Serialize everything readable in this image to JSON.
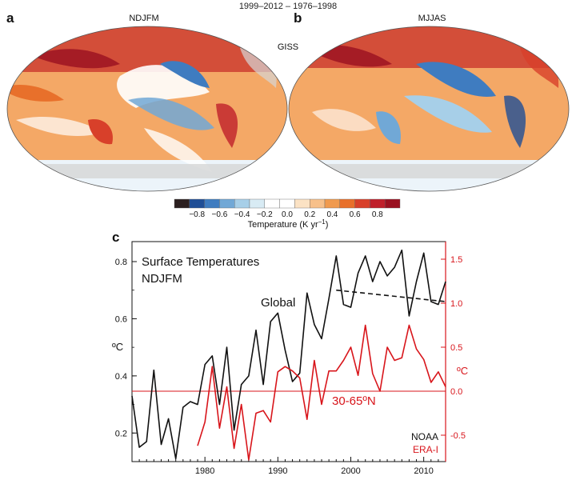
{
  "figure": {
    "header": "1999–2012 – 1976–1998",
    "panel_a": {
      "letter": "a",
      "season": "NDJFM"
    },
    "panel_b": {
      "letter": "b",
      "season": "MJJAS"
    },
    "panel_c": {
      "letter": "c"
    },
    "dataset_label": "GISS"
  },
  "colorbar": {
    "ticks": [
      "−0.8",
      "−0.6",
      "−0.4",
      "−0.2",
      "0.0",
      "0.2",
      "0.4",
      "0.6",
      "0.8"
    ],
    "label": "Temperature (K yr",
    "label_sup": "−1",
    "label_end": ")",
    "colors": [
      "#2b1f1f",
      "#1f4e96",
      "#3f7cc0",
      "#71a8d6",
      "#a7cfe8",
      "#d8ebf4",
      "#ffffff",
      "#ffffff",
      "#fbe2c4",
      "#f7c08a",
      "#f09a4e",
      "#e8702b",
      "#d8402a",
      "#bf1f2b",
      "#9a1020"
    ]
  },
  "maps": {
    "ocean_color": "#f4a866",
    "land_missing_color": "#d6d6d6"
  },
  "chart_data": {
    "type": "line",
    "title": "Surface Temperatures",
    "subtitle": "NDJFM",
    "xlim": [
      1970,
      2013
    ],
    "x_ticks": [
      "1980",
      "1990",
      "2000",
      "2010"
    ],
    "x_tick_values": [
      1980,
      1990,
      2000,
      2010
    ],
    "ylim_left": [
      0.1,
      0.87
    ],
    "y_left_ticks": [
      "0.2",
      "0.4",
      "0.6",
      "0.8"
    ],
    "y_left_tick_values": [
      0.2,
      0.4,
      0.6,
      0.8
    ],
    "ylabel_left": "ºC",
    "ylim_right": [
      -0.8,
      1.7
    ],
    "y_right_ticks": [
      "-0.5",
      "0.0",
      "0.5",
      "1.0",
      "1.5"
    ],
    "y_right_tick_values": [
      -0.5,
      0.0,
      0.5,
      1.0,
      1.5
    ],
    "ylabel_right": "ºC",
    "series": [
      {
        "name": "NOAA",
        "axis": "left",
        "color": "#111111",
        "x": [
          1970,
          1971,
          1972,
          1973,
          1974,
          1975,
          1976,
          1977,
          1978,
          1979,
          1980,
          1981,
          1982,
          1983,
          1984,
          1985,
          1986,
          1987,
          1988,
          1989,
          1990,
          1991,
          1992,
          1993,
          1994,
          1995,
          1996,
          1997,
          1998,
          1999,
          2000,
          2001,
          2002,
          2003,
          2004,
          2005,
          2006,
          2007,
          2008,
          2009,
          2010,
          2011,
          2012,
          2013
        ],
        "y": [
          0.33,
          0.15,
          0.17,
          0.42,
          0.16,
          0.25,
          0.11,
          0.29,
          0.31,
          0.3,
          0.44,
          0.47,
          0.3,
          0.5,
          0.21,
          0.37,
          0.4,
          0.56,
          0.37,
          0.59,
          0.62,
          0.49,
          0.38,
          0.41,
          0.69,
          0.58,
          0.53,
          0.67,
          0.82,
          0.65,
          0.64,
          0.76,
          0.82,
          0.73,
          0.8,
          0.75,
          0.78,
          0.84,
          0.61,
          0.73,
          0.83,
          0.66,
          0.65,
          0.73
        ]
      },
      {
        "name": "ERA-I",
        "axis": "right",
        "color": "#d8151b",
        "x": [
          1979,
          1980,
          1981,
          1982,
          1983,
          1984,
          1985,
          1986,
          1987,
          1988,
          1989,
          1990,
          1991,
          1992,
          1993,
          1994,
          1995,
          1996,
          1997,
          1998,
          1999,
          2000,
          2001,
          2002,
          2003,
          2004,
          2005,
          2006,
          2007,
          2008,
          2009,
          2010,
          2011,
          2012,
          2013
        ],
        "y": [
          -0.62,
          -0.35,
          0.28,
          -0.42,
          0.05,
          -0.65,
          -0.15,
          -0.78,
          -0.25,
          -0.22,
          -0.35,
          0.22,
          0.28,
          0.23,
          0.15,
          -0.32,
          0.35,
          -0.15,
          0.23,
          0.23,
          0.35,
          0.5,
          0.18,
          0.75,
          0.2,
          0.0,
          0.5,
          0.35,
          0.38,
          0.75,
          0.48,
          0.36,
          0.1,
          0.22,
          0.05
        ]
      }
    ],
    "trend": {
      "x": [
        1998,
        2013
      ],
      "y": [
        0.7,
        0.66
      ]
    },
    "zero_line": 0.0,
    "annotations": {
      "global_label": "Global",
      "band_label": "30-65ºN",
      "legend_noaa": "NOAA",
      "legend_era": "ERA-I"
    }
  }
}
